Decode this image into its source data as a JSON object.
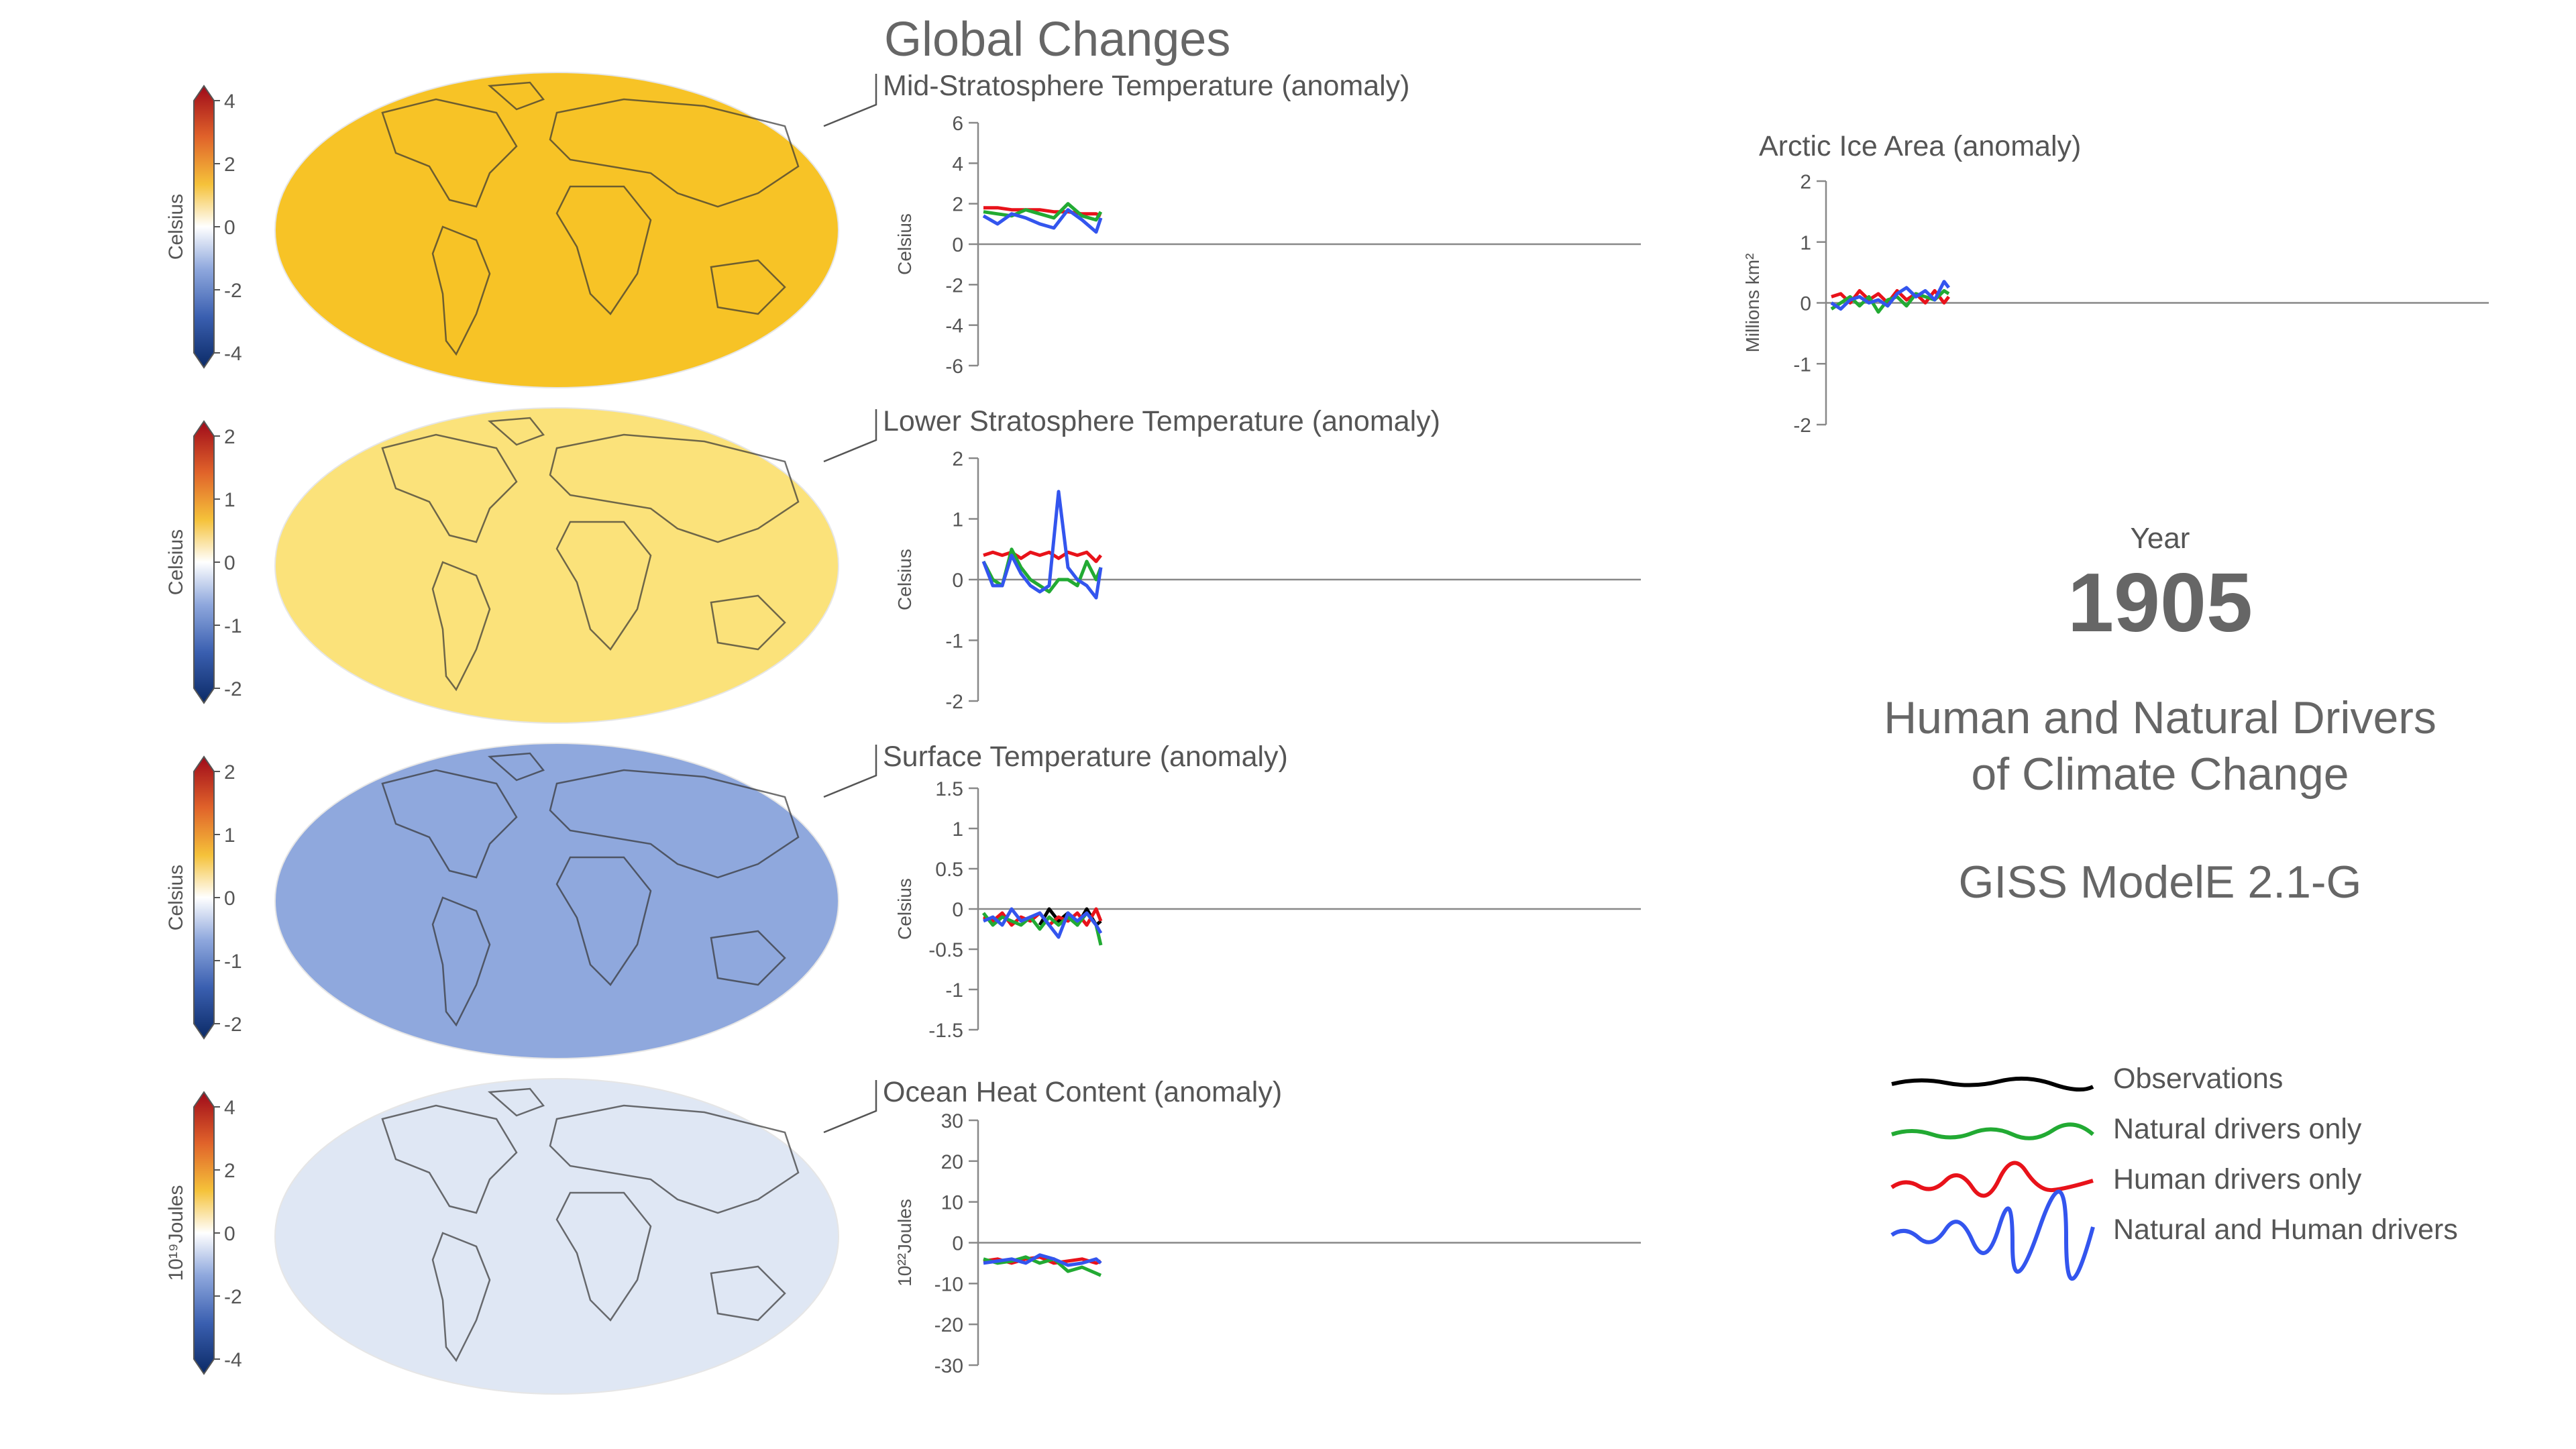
{
  "header": {
    "title": "Global Changes",
    "year_label": "Year",
    "year": "1905",
    "subtitle_line1": "Human and Natural Drivers",
    "subtitle_line2": "of Climate Change",
    "model": "GISS ModelE 2.1-G"
  },
  "colors": {
    "observations": "#000000",
    "natural": "#22aa33",
    "human": "#e8121a",
    "both": "#3355ee",
    "axis": "#888888"
  },
  "legend": [
    {
      "label": "Observations",
      "key": "observations"
    },
    {
      "label": "Natural drivers only",
      "key": "natural"
    },
    {
      "label": "Human drivers only",
      "key": "human"
    },
    {
      "label": "Natural and Human drivers",
      "key": "both"
    }
  ],
  "maps": [
    {
      "name": "mid-stratosphere",
      "cbar_label": "Celsius",
      "ticks": [
        "4",
        "2",
        "0",
        "-2",
        "-4"
      ],
      "fill": "#f7c326"
    },
    {
      "name": "lower-stratosphere",
      "cbar_label": "Celsius",
      "ticks": [
        "2",
        "1",
        "0",
        "-1",
        "-2"
      ],
      "fill": "#fbe27a"
    },
    {
      "name": "surface",
      "cbar_label": "Celsius",
      "ticks": [
        "2",
        "1",
        "0",
        "-1",
        "-2"
      ],
      "fill": "#8fa8dd"
    },
    {
      "name": "ocean-heat",
      "cbar_label": "10¹⁹Joules",
      "ticks": [
        "4",
        "2",
        "0",
        "-2",
        "-4"
      ],
      "fill": "#dfe7f4"
    }
  ],
  "chart_data": [
    {
      "type": "line",
      "title": "Mid-Stratosphere Temperature (anomaly)",
      "ylabel": "Celsius",
      "ylim": [
        -6,
        6
      ],
      "yticks": [
        "6",
        "4",
        "2",
        "0",
        "-2",
        "-4",
        "-6"
      ],
      "xlim": [
        1880,
        2020
      ],
      "x": [
        1880,
        1883,
        1886,
        1889,
        1892,
        1895,
        1898,
        1901,
        1904,
        1905
      ],
      "series": [
        {
          "key": "human",
          "values": [
            1.8,
            1.8,
            1.7,
            1.7,
            1.7,
            1.6,
            1.6,
            1.5,
            1.5,
            1.4
          ]
        },
        {
          "key": "natural",
          "values": [
            1.6,
            1.5,
            1.4,
            1.7,
            1.5,
            1.3,
            2.0,
            1.4,
            1.2,
            1.6
          ]
        },
        {
          "key": "both",
          "values": [
            1.4,
            1.0,
            1.5,
            1.3,
            1.0,
            0.8,
            1.7,
            1.2,
            0.6,
            1.3
          ]
        }
      ]
    },
    {
      "type": "line",
      "title": "Lower Stratosphere Temperature (anomaly)",
      "ylabel": "Celsius",
      "ylim": [
        -2,
        2
      ],
      "yticks": [
        "2",
        "1",
        "0",
        "-1",
        "-2"
      ],
      "xlim": [
        1880,
        2020
      ],
      "x": [
        1880,
        1882,
        1884,
        1886,
        1888,
        1890,
        1892,
        1894,
        1896,
        1898,
        1900,
        1902,
        1904,
        1905
      ],
      "series": [
        {
          "key": "human",
          "values": [
            0.4,
            0.45,
            0.4,
            0.45,
            0.35,
            0.45,
            0.4,
            0.45,
            0.35,
            0.45,
            0.4,
            0.45,
            0.3,
            0.4
          ]
        },
        {
          "key": "natural",
          "values": [
            0.3,
            0.0,
            -0.1,
            0.5,
            0.2,
            0.0,
            -0.1,
            -0.2,
            0.0,
            0.0,
            -0.1,
            0.3,
            0.0,
            0.2
          ]
        },
        {
          "key": "both",
          "values": [
            0.3,
            -0.1,
            -0.1,
            0.4,
            0.1,
            -0.1,
            -0.2,
            -0.1,
            1.45,
            0.2,
            0.0,
            -0.1,
            -0.3,
            0.2
          ]
        }
      ]
    },
    {
      "type": "line",
      "title": "Surface Temperature (anomaly)",
      "ylabel": "Celsius",
      "ylim": [
        -1.5,
        1.5
      ],
      "yticks": [
        "1.5",
        "1",
        "0.5",
        "0",
        "-0.5",
        "-1",
        "-1.5"
      ],
      "xlim": [
        1880,
        2020
      ],
      "x": [
        1880,
        1882,
        1884,
        1886,
        1888,
        1890,
        1892,
        1894,
        1896,
        1898,
        1900,
        1902,
        1904,
        1905
      ],
      "series": [
        {
          "key": "observations",
          "values": [
            null,
            null,
            null,
            null,
            null,
            null,
            -0.2,
            0.0,
            -0.15,
            -0.05,
            -0.2,
            0.0,
            -0.2,
            -0.15
          ]
        },
        {
          "key": "human",
          "values": [
            -0.1,
            -0.15,
            -0.05,
            -0.2,
            -0.1,
            -0.15,
            -0.05,
            -0.2,
            -0.1,
            -0.15,
            -0.05,
            -0.2,
            0.0,
            -0.15
          ]
        },
        {
          "key": "natural",
          "values": [
            -0.05,
            -0.2,
            -0.1,
            -0.15,
            -0.2,
            -0.1,
            -0.25,
            -0.1,
            -0.2,
            -0.1,
            -0.2,
            -0.05,
            -0.2,
            -0.45
          ]
        },
        {
          "key": "both",
          "values": [
            -0.15,
            -0.1,
            -0.2,
            0.0,
            -0.15,
            -0.1,
            -0.05,
            -0.2,
            -0.35,
            -0.05,
            -0.15,
            -0.05,
            -0.2,
            -0.3
          ]
        }
      ]
    },
    {
      "type": "line",
      "title": "Ocean Heat Content (anomaly)",
      "ylabel": "10²²Joules",
      "ylim": [
        -30,
        30
      ],
      "yticks": [
        "30",
        "20",
        "10",
        "0",
        "-10",
        "-20",
        "-30"
      ],
      "xlim": [
        1880,
        2020
      ],
      "x": [
        1880,
        1883,
        1886,
        1889,
        1892,
        1895,
        1898,
        1901,
        1904,
        1905
      ],
      "series": [
        {
          "key": "human",
          "values": [
            -4.5,
            -4,
            -5,
            -4,
            -3.5,
            -5,
            -4.5,
            -4,
            -5,
            -4.5
          ]
        },
        {
          "key": "natural",
          "values": [
            -4,
            -5,
            -4.5,
            -3.5,
            -5,
            -4,
            -7,
            -6,
            -7.5,
            -8
          ]
        },
        {
          "key": "both",
          "values": [
            -5,
            -4.5,
            -4,
            -5,
            -3,
            -4,
            -5.5,
            -5,
            -4,
            -5
          ]
        }
      ]
    },
    {
      "type": "line",
      "title": "Arctic Ice Area (anomaly)",
      "ylabel": "Millions km²",
      "ylim": [
        -2,
        2
      ],
      "yticks": [
        "2",
        "1",
        "0",
        "-1",
        "-2"
      ],
      "xlim": [
        1880,
        2020
      ],
      "x": [
        1880,
        1882,
        1884,
        1886,
        1888,
        1890,
        1892,
        1894,
        1896,
        1898,
        1900,
        1902,
        1904,
        1905
      ],
      "series": [
        {
          "key": "human",
          "values": [
            0.1,
            0.15,
            0.0,
            0.2,
            0.05,
            0.15,
            0.0,
            0.2,
            0.05,
            0.15,
            0.0,
            0.2,
            0.0,
            0.1
          ]
        },
        {
          "key": "natural",
          "values": [
            -0.1,
            0.0,
            0.1,
            -0.05,
            0.1,
            -0.15,
            0.05,
            0.1,
            -0.05,
            0.15,
            0.1,
            0.05,
            0.2,
            0.15
          ]
        },
        {
          "key": "both",
          "values": [
            0.0,
            -0.1,
            0.05,
            0.1,
            0.0,
            0.05,
            -0.05,
            0.15,
            0.25,
            0.1,
            0.2,
            0.05,
            0.35,
            0.25
          ]
        }
      ]
    }
  ]
}
